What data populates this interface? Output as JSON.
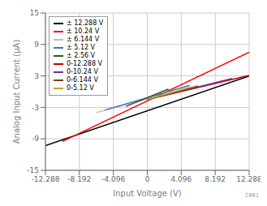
{
  "chart_data": {
    "type": "line",
    "title": "",
    "xlabel": "Input Voltage (V)",
    "ylabel": "Analog Input Current (μA)",
    "xlim": [
      -12.288,
      12.288
    ],
    "ylim": [
      -15,
      15
    ],
    "xticks": [
      -12.288,
      -8.192,
      -4.096,
      0,
      4.096,
      8.192,
      12.288
    ],
    "yticks": [
      -15,
      -9,
      -3,
      3,
      9,
      15
    ],
    "grid": true,
    "legend": "upper left",
    "annotations": [
      "C001"
    ],
    "series": [
      {
        "name": "± 12.288 V",
        "color": "#000000",
        "x": [
          -12.288,
          12.288
        ],
        "values": [
          -10.3,
          3.0
        ]
      },
      {
        "name": "± 10.24 V",
        "color": "#ff0000",
        "x": [
          -10.24,
          12.288
        ],
        "values": [
          -9.5,
          7.5
        ]
      },
      {
        "name": "± 6.144 V",
        "color": "#bbbbbb",
        "x": [
          -6.144,
          6.144
        ],
        "values": [
          -4.0,
          1.2
        ]
      },
      {
        "name": "± 5.12 V",
        "color": "#4472c4",
        "x": [
          -5.12,
          5.12
        ],
        "values": [
          -3.5,
          1.2
        ]
      },
      {
        "name": "± 2.56 V",
        "color": "#375623",
        "x": [
          -2.56,
          2.56
        ],
        "values": [
          -2.8,
          0.5
        ]
      },
      {
        "name": "0-12.288 V",
        "color": "#c00000",
        "x": [
          0,
          12.288
        ],
        "values": [
          -1.5,
          3.1
        ]
      },
      {
        "name": "0-10.24 V",
        "color": "#7030a0",
        "x": [
          0,
          10.24
        ],
        "values": [
          -1.5,
          2.5
        ]
      },
      {
        "name": "0-6.144 V",
        "color": "#7b3f00",
        "x": [
          0,
          6.144
        ],
        "values": [
          -1.5,
          1.0
        ]
      },
      {
        "name": "0-5.12 V",
        "color": "#c8a020",
        "x": [
          0,
          5.12
        ],
        "values": [
          -1.5,
          0.8
        ]
      }
    ]
  }
}
